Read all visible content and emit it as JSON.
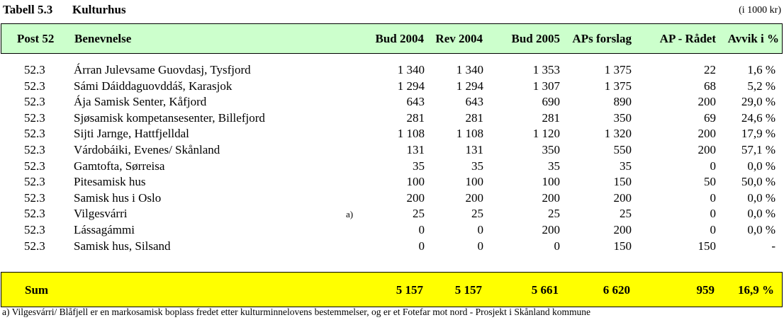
{
  "title": {
    "number": "Tabell 5.3",
    "name": "Kulturhus",
    "unit": "(i 1000 kr)"
  },
  "columns": {
    "post": "Post 52",
    "name": "Benevnelse",
    "bud2004": "Bud 2004",
    "rev2004": "Rev 2004",
    "bud2005": "Bud 2005",
    "ap_forslag": "APs forslag",
    "ap_radet": "AP - Rådet",
    "avvik": "Avvik i %"
  },
  "rows": [
    {
      "post": "52.3",
      "name": "Árran Julevsame Guovdasj, Tysfjord",
      "note": "",
      "bud2004": "1 340",
      "rev2004": "1 340",
      "bud2005": "1 353",
      "ap_forslag": "1 375",
      "ap_radet": "22",
      "avvik": "1,6 %"
    },
    {
      "post": "52.3",
      "name": "Sámi Dáiddaguovddáš, Karasjok",
      "note": "",
      "bud2004": "1 294",
      "rev2004": "1 294",
      "bud2005": "1 307",
      "ap_forslag": "1 375",
      "ap_radet": "68",
      "avvik": "5,2 %"
    },
    {
      "post": "52.3",
      "name": "Ája Samisk Senter, Kåfjord",
      "note": "",
      "bud2004": "643",
      "rev2004": "643",
      "bud2005": "690",
      "ap_forslag": "890",
      "ap_radet": "200",
      "avvik": "29,0 %"
    },
    {
      "post": "52.3",
      "name": "Sjøsamisk kompetansesenter, Billefjord",
      "note": "",
      "bud2004": "281",
      "rev2004": "281",
      "bud2005": "281",
      "ap_forslag": "350",
      "ap_radet": "69",
      "avvik": "24,6 %"
    },
    {
      "post": "52.3",
      "name": "Sijti Jarnge, Hattfjelldal",
      "note": "",
      "bud2004": "1 108",
      "rev2004": "1 108",
      "bud2005": "1 120",
      "ap_forslag": "1 320",
      "ap_radet": "200",
      "avvik": "17,9 %"
    },
    {
      "post": "52.3",
      "name": "Várdobáiki, Evenes/ Skånland",
      "note": "",
      "bud2004": "131",
      "rev2004": "131",
      "bud2005": "350",
      "ap_forslag": "550",
      "ap_radet": "200",
      "avvik": "57,1 %"
    },
    {
      "post": "52.3",
      "name": "Gamtofta, Sørreisa",
      "note": "",
      "bud2004": "35",
      "rev2004": "35",
      "bud2005": "35",
      "ap_forslag": "35",
      "ap_radet": "0",
      "avvik": "0,0 %"
    },
    {
      "post": "52.3",
      "name": "Pitesamisk hus",
      "note": "",
      "bud2004": "100",
      "rev2004": "100",
      "bud2005": "100",
      "ap_forslag": "150",
      "ap_radet": "50",
      "avvik": "50,0 %"
    },
    {
      "post": "52.3",
      "name": "Samisk hus i Oslo",
      "note": "",
      "bud2004": "200",
      "rev2004": "200",
      "bud2005": "200",
      "ap_forslag": "200",
      "ap_radet": "0",
      "avvik": "0,0 %"
    },
    {
      "post": "52.3",
      "name": "Vilgesvárri",
      "note": "a)",
      "bud2004": "25",
      "rev2004": "25",
      "bud2005": "25",
      "ap_forslag": "25",
      "ap_radet": "0",
      "avvik": "0,0 %"
    },
    {
      "post": "52.3",
      "name": "Lássagámmi",
      "note": "",
      "bud2004": "0",
      "rev2004": "0",
      "bud2005": "200",
      "ap_forslag": "200",
      "ap_radet": "0",
      "avvik": "0,0 %"
    },
    {
      "post": "52.3",
      "name": "Samisk hus, Silsand",
      "note": "",
      "bud2004": "0",
      "rev2004": "0",
      "bud2005": "0",
      "ap_forslag": "150",
      "ap_radet": "150",
      "avvik": "-"
    }
  ],
  "sum": {
    "label": "Sum",
    "bud2004": "5 157",
    "rev2004": "5 157",
    "bud2005": "5 661",
    "ap_forslag": "6 620",
    "ap_radet": "959",
    "avvik": "16,9 %"
  },
  "footnote": "a) Vilgesvárri/ Blåfjell er en markosamisk boplass fredet etter kulturminnelovens bestemmelser, og er et Fotefar mot nord - Prosjekt i Skånland kommune",
  "colors": {
    "header_bg": "#ccffcc",
    "sum_bg": "#ffff00"
  }
}
